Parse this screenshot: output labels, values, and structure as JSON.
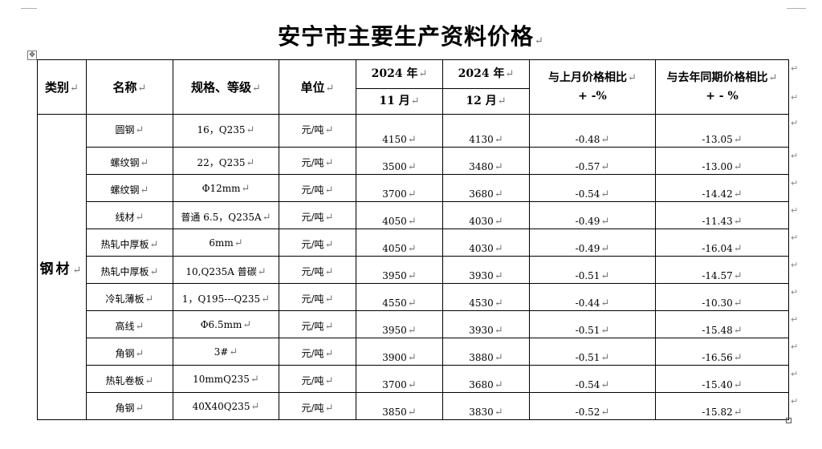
{
  "title": "安宁市主要生产资料价格",
  "paragraph_mark": "↵",
  "table_handle_icon": "move-handle-icon",
  "header": {
    "category": "类别",
    "name": "名称",
    "spec": "规格、等级",
    "unit": "单位",
    "month1_year": "2024 年",
    "month1_month": "11 月",
    "month2_year": "2024 年",
    "month2_month": "12 月",
    "mom_line1": "与上月价格相比",
    "mom_line2": "+ -%",
    "yoy_line1": "与去年同期价格相比",
    "yoy_line2": "+ - %"
  },
  "category_label": "钢材",
  "rows": [
    {
      "name": "圆钢",
      "spec": "16，Q235",
      "unit": "元/吨",
      "nov": "4150",
      "dec": "4130",
      "mom": "-0.48",
      "yoy": "-13.05"
    },
    {
      "name": "螺纹钢",
      "spec": "22，Q235",
      "unit": "元/吨",
      "nov": "3500",
      "dec": "3480",
      "mom": "-0.57",
      "yoy": "-13.00"
    },
    {
      "name": "螺纹钢",
      "spec": "Φ12mm",
      "unit": "元/吨",
      "nov": "3700",
      "dec": "3680",
      "mom": "-0.54",
      "yoy": "-14.42"
    },
    {
      "name": "线材",
      "spec": "普通 6.5，Q235A",
      "unit": "元/吨",
      "nov": "4050",
      "dec": "4030",
      "mom": "-0.49",
      "yoy": "-11.43"
    },
    {
      "name": "热轧中厚板",
      "spec": "6mm",
      "unit": "元/吨",
      "nov": "4050",
      "dec": "4030",
      "mom": "-0.49",
      "yoy": "-16.04"
    },
    {
      "name": "热轧中厚板",
      "spec": "10,Q235A 普碳",
      "unit": "元/吨",
      "nov": "3950",
      "dec": "3930",
      "mom": "-0.51",
      "yoy": "-14.57"
    },
    {
      "name": "冷轧薄板",
      "spec": "1，Q195---Q235",
      "unit": "元/吨",
      "nov": "4550",
      "dec": "4530",
      "mom": "-0.44",
      "yoy": "-10.30"
    },
    {
      "name": "高线",
      "spec": "Φ6.5mm",
      "unit": "元/吨",
      "nov": "3950",
      "dec": "3930",
      "mom": "-0.51",
      "yoy": "-15.48"
    },
    {
      "name": "角钢",
      "spec": "3#",
      "unit": "元/吨",
      "nov": "3900",
      "dec": "3880",
      "mom": "-0.51",
      "yoy": "-16.56"
    },
    {
      "name": "热轧卷板",
      "spec": "10mmQ235",
      "unit": "元/吨",
      "nov": "3700",
      "dec": "3680",
      "mom": "-0.54",
      "yoy": "-15.40"
    },
    {
      "name": "角钢",
      "spec": "40X40Q235",
      "unit": "元/吨",
      "nov": "3850",
      "dec": "3830",
      "mom": "-0.52",
      "yoy": "-15.82"
    }
  ]
}
